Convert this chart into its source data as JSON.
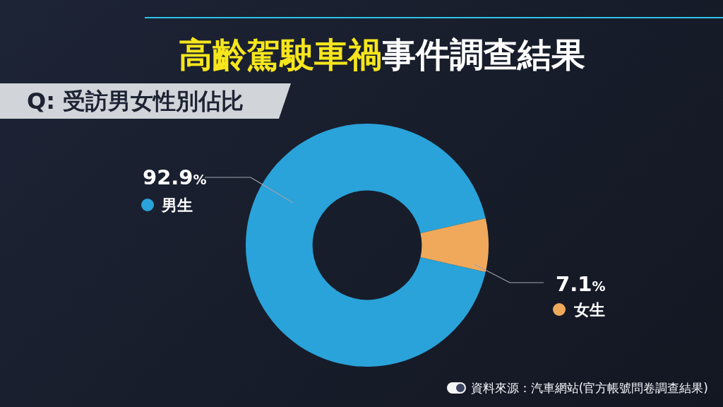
{
  "chart_data": {
    "type": "donut",
    "title": "高齡駕駛車禍事件調查結果",
    "subtitle": "Q: 受訪男女性別佔比",
    "categories": [
      "男生",
      "女生"
    ],
    "values": [
      92.9,
      7.1
    ],
    "colors": [
      "#29a3d9",
      "#f0a95b"
    ],
    "value_labels": [
      "92.9%",
      "7.1%"
    ],
    "legend": "right",
    "annotations": [
      "資料來源：汽車網站(官方帳號問卷調查結果)"
    ]
  }
}
